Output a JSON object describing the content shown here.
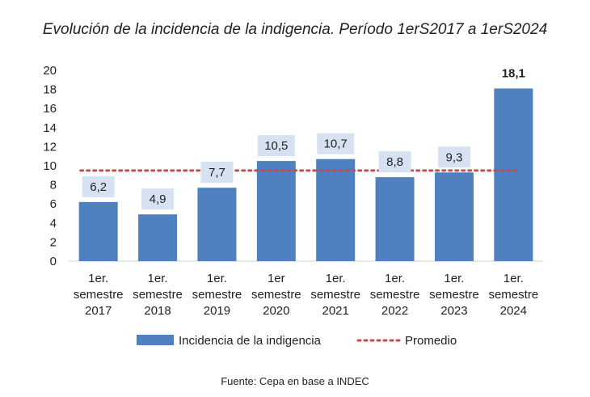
{
  "chart_data": {
    "type": "bar",
    "title": "Evolución de la incidencia de la indigencia. Período 1erS2017 a 1erS2024",
    "categories": [
      [
        "1er.",
        "semestre",
        "2017"
      ],
      [
        "1er.",
        "semestre",
        "2018"
      ],
      [
        "1er.",
        "semestre",
        "2019"
      ],
      [
        "1er",
        "semestre",
        "2020"
      ],
      [
        "1er.",
        "semestre",
        "2021"
      ],
      [
        "1er.",
        "semestre",
        "2022"
      ],
      [
        "1er.",
        "semestre",
        "2023"
      ],
      [
        "1er.",
        "semestre",
        "2024"
      ]
    ],
    "series": [
      {
        "name": "Incidencia de la indigencia",
        "values": [
          6.2,
          4.9,
          7.7,
          10.5,
          10.7,
          8.8,
          9.3,
          18.1
        ],
        "labels": [
          "6,2",
          "4,9",
          "7,7",
          "10,5",
          "10,7",
          "8,8",
          "9,3",
          "18,1"
        ],
        "color": "#4f81c0",
        "label_bg": "#d6e2f1"
      },
      {
        "name": "Promedio",
        "type": "dotted-line",
        "value": 9.5,
        "color": "#c0504d"
      }
    ],
    "yticks": [
      "0",
      "2",
      "4",
      "6",
      "8",
      "10",
      "12",
      "14",
      "16",
      "18",
      "20"
    ],
    "ylim": [
      0,
      20
    ],
    "grid": false,
    "legend": "bottom",
    "xlabel": "",
    "ylabel": ""
  },
  "footer": {
    "source": "Fuente: Cepa en base a INDEC"
  }
}
